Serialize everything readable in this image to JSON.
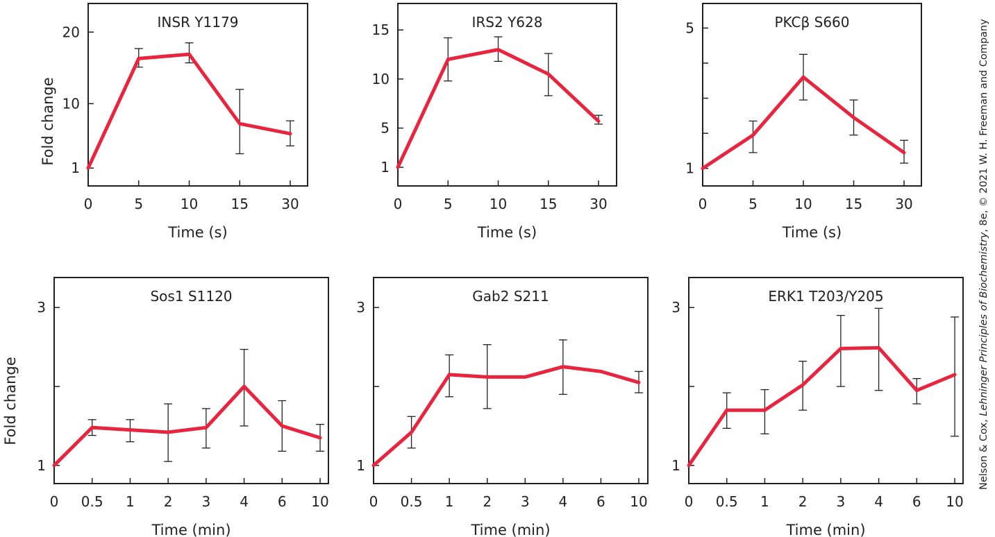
{
  "credit": {
    "prefix": "Nelson & Cox, ",
    "title": "Lehninger Principles of Biochemistry",
    "suffix": ", 8e, © 2021 W. H. Freeman and Company"
  },
  "colors": {
    "line": "#e8253f",
    "axis": "#231f20",
    "errorbar": "#231f20"
  },
  "chart_data": [
    {
      "type": "line",
      "title": "INSR Y1179",
      "xlabel": "Time (s)",
      "ylabel": "Fold change",
      "categories": [
        "0",
        "5",
        "10",
        "15",
        "30"
      ],
      "yticks": [
        1,
        10,
        20
      ],
      "minor_yticks": [],
      "ylim": [
        -1.5,
        24
      ],
      "grid": false,
      "series": [
        {
          "values": [
            1,
            16.3,
            16.9,
            7.2,
            5.8
          ],
          "err_low": [
            1,
            15.1,
            15.7,
            3.0,
            4.1
          ],
          "err_high": [
            1,
            17.7,
            18.5,
            12.0,
            7.6
          ]
        }
      ]
    },
    {
      "type": "line",
      "title": "IRS2 Y628",
      "xlabel": "Time (s)",
      "ylabel": "",
      "categories": [
        "0",
        "5",
        "10",
        "15",
        "30"
      ],
      "yticks": [
        1,
        5,
        10,
        15
      ],
      "minor_yticks": [],
      "ylim": [
        -0.9,
        17.7
      ],
      "grid": false,
      "series": [
        {
          "values": [
            1,
            12.0,
            13.0,
            10.5,
            5.7
          ],
          "err_low": [
            1,
            9.8,
            11.8,
            8.3,
            5.4
          ],
          "err_high": [
            1,
            14.2,
            14.3,
            12.6,
            6.3
          ]
        }
      ]
    },
    {
      "type": "line",
      "title": "PKCβ S660",
      "xlabel": "Time (s)",
      "ylabel": "",
      "categories": [
        "0",
        "5",
        "10",
        "15",
        "30"
      ],
      "yticks": [
        1,
        5
      ],
      "minor_yticks": [
        2,
        3,
        4
      ],
      "ylim": [
        0.5,
        5.7
      ],
      "grid": false,
      "series": [
        {
          "values": [
            1,
            1.95,
            3.6,
            2.45,
            1.45
          ],
          "err_low": [
            1,
            1.45,
            2.95,
            1.95,
            1.15
          ],
          "err_high": [
            1,
            2.35,
            4.25,
            2.95,
            1.8
          ]
        }
      ]
    },
    {
      "type": "line",
      "title": "Sos1 S1120",
      "xlabel": "Time (min)",
      "ylabel": "Fold change",
      "categories": [
        "0",
        "0.5",
        "1",
        "2",
        "3",
        "4",
        "6",
        "10"
      ],
      "yticks": [
        1,
        3
      ],
      "minor_yticks": [
        2
      ],
      "ylim": [
        0.77,
        3.38
      ],
      "grid": false,
      "series": [
        {
          "values": [
            1,
            1.48,
            1.45,
            1.42,
            1.48,
            2.0,
            1.5,
            1.35
          ],
          "err_low": [
            1,
            1.38,
            1.3,
            1.05,
            1.22,
            1.5,
            1.18,
            1.18
          ],
          "err_high": [
            1,
            1.58,
            1.58,
            1.78,
            1.72,
            2.47,
            1.82,
            1.52
          ]
        }
      ]
    },
    {
      "type": "line",
      "title": "Gab2 S211",
      "xlabel": "Time (min)",
      "ylabel": "",
      "categories": [
        "0",
        "0.5",
        "1",
        "2",
        "3",
        "4",
        "6",
        "10"
      ],
      "yticks": [
        1,
        3
      ],
      "minor_yticks": [
        2
      ],
      "ylim": [
        0.77,
        3.38
      ],
      "grid": false,
      "series": [
        {
          "values": [
            1,
            1.42,
            2.15,
            2.12,
            2.12,
            2.25,
            2.19,
            2.05
          ],
          "err_low": [
            1,
            1.22,
            1.87,
            1.72,
            2.12,
            1.9,
            2.19,
            1.92
          ],
          "err_high": [
            1,
            1.62,
            2.4,
            2.53,
            2.12,
            2.59,
            2.19,
            2.19
          ]
        }
      ]
    },
    {
      "type": "line",
      "title": "ERK1 T203/Y205",
      "xlabel": "Time (min)",
      "ylabel": "",
      "categories": [
        "0",
        "0.5",
        "1",
        "2",
        "3",
        "4",
        "6",
        "10"
      ],
      "yticks": [
        1,
        3
      ],
      "minor_yticks": [
        2
      ],
      "ylim": [
        0.77,
        3.38
      ],
      "grid": false,
      "series": [
        {
          "values": [
            1,
            1.7,
            1.7,
            2.02,
            2.48,
            2.49,
            1.95,
            2.15
          ],
          "err_low": [
            1,
            1.47,
            1.4,
            1.7,
            2.0,
            1.95,
            1.78,
            1.37
          ],
          "err_high": [
            1,
            1.92,
            1.96,
            2.32,
            2.9,
            2.99,
            2.1,
            2.88
          ]
        }
      ]
    }
  ]
}
